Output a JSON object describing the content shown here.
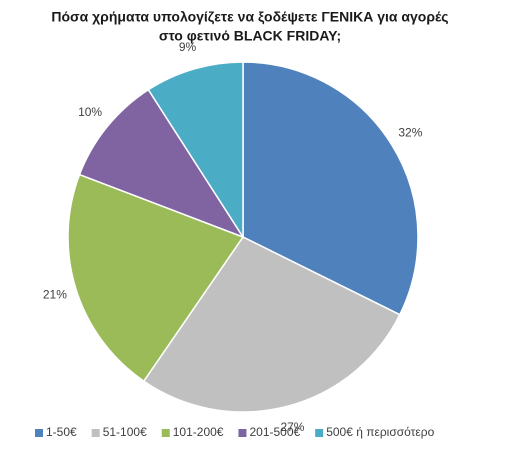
{
  "chart_data": {
    "type": "pie",
    "title": [
      "Πόσα χρήματα υπολογίζετε να ξοδέψετε ΓΕΝΙΚΑ για αγορές",
      "στο φετινό BLACK FRIDAY;"
    ],
    "categories": [
      "1-50€",
      "51-100€",
      "101-200€",
      "201-500€",
      "500€ ή περισσότερο"
    ],
    "values": [
      32,
      27,
      21,
      10,
      9
    ],
    "value_labels": [
      "32%",
      "27%",
      "21%",
      "10%",
      "9%"
    ],
    "colors": [
      "#4f81bd",
      "#c0c0c0",
      "#9bbb59",
      "#8064a2",
      "#4bacc6"
    ],
    "legend": "bottom"
  }
}
